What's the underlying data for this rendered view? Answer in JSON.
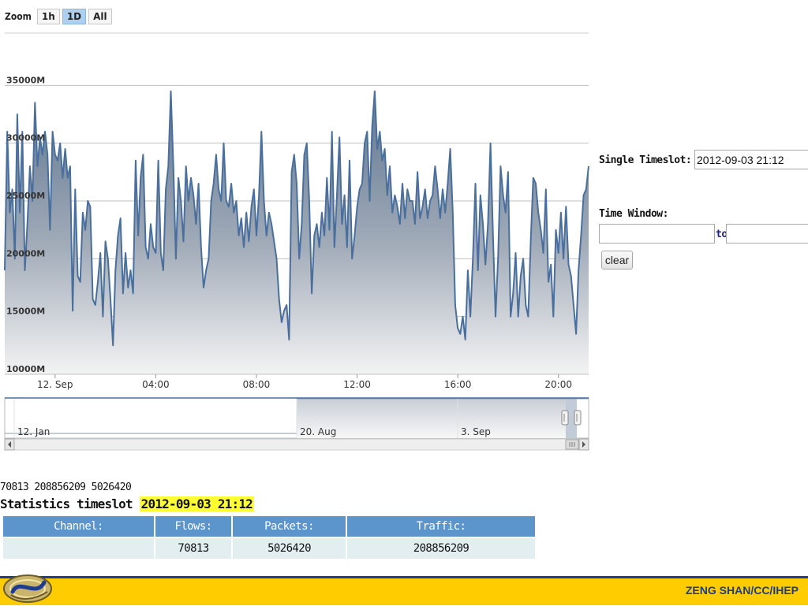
{
  "zoom": {
    "label": "Zoom",
    "buttons": [
      "1h",
      "1D",
      "All"
    ],
    "active": "1D"
  },
  "chart_data": {
    "type": "area",
    "title": "",
    "xlabel": "",
    "ylabel": "",
    "ylim": [
      10000,
      37000
    ],
    "ytick_values": [
      10000,
      15000,
      20000,
      25000,
      30000,
      35000
    ],
    "ytick_labels": [
      "10000M",
      "15000M",
      "20000M",
      "25000M",
      "30000M",
      "35000M"
    ],
    "x_start": "2012-09-11 22:00",
    "x_end": "2012-09-12 21:12",
    "xtick_labels": [
      "12. Sep",
      "04:00",
      "08:00",
      "12:00",
      "16:00",
      "20:00"
    ],
    "xtick_times": [
      "2012-09-12 00:00",
      "2012-09-12 04:00",
      "2012-09-12 08:00",
      "2012-09-12 12:00",
      "2012-09-12 16:00",
      "2012-09-12 20:00"
    ],
    "series": [
      {
        "unit": "M",
        "color": "#4a6f9c",
        "points": [
          [
            "2012-09-11 22:00",
            19000
          ],
          [
            "2012-09-11 22:06",
            31000
          ],
          [
            "2012-09-11 22:12",
            24000
          ],
          [
            "2012-09-11 22:18",
            26000
          ],
          [
            "2012-09-11 22:24",
            20000
          ],
          [
            "2012-09-11 22:30",
            32500
          ],
          [
            "2012-09-11 22:36",
            24000
          ],
          [
            "2012-09-11 22:42",
            31000
          ],
          [
            "2012-09-11 22:48",
            19000
          ],
          [
            "2012-09-11 22:54",
            23000
          ],
          [
            "2012-09-11 23:00",
            28000
          ],
          [
            "2012-09-11 23:06",
            25000
          ],
          [
            "2012-09-11 23:12",
            33500
          ],
          [
            "2012-09-11 23:18",
            28000
          ],
          [
            "2012-09-11 23:24",
            30500
          ],
          [
            "2012-09-11 23:30",
            29000
          ],
          [
            "2012-09-11 23:36",
            31000
          ],
          [
            "2012-09-11 23:42",
            29000
          ],
          [
            "2012-09-11 23:48",
            22500
          ],
          [
            "2012-09-11 23:54",
            31000
          ],
          [
            "2012-09-12 00:00",
            29000
          ],
          [
            "2012-09-12 00:06",
            28500
          ],
          [
            "2012-09-12 00:12",
            30000
          ],
          [
            "2012-09-12 00:18",
            27000
          ],
          [
            "2012-09-12 00:24",
            29500
          ],
          [
            "2012-09-12 00:30",
            27000
          ],
          [
            "2012-09-12 00:36",
            28000
          ],
          [
            "2012-09-12 00:42",
            15500
          ],
          [
            "2012-09-12 00:48",
            26000
          ],
          [
            "2012-09-12 00:54",
            18500
          ],
          [
            "2012-09-12 01:00",
            18000
          ],
          [
            "2012-09-12 01:06",
            24000
          ],
          [
            "2012-09-12 01:12",
            22500
          ],
          [
            "2012-09-12 01:18",
            25000
          ],
          [
            "2012-09-12 01:24",
            24500
          ],
          [
            "2012-09-12 01:30",
            16500
          ],
          [
            "2012-09-12 01:36",
            16000
          ],
          [
            "2012-09-12 01:42",
            18000
          ],
          [
            "2012-09-12 01:48",
            20500
          ],
          [
            "2012-09-12 01:54",
            15000
          ],
          [
            "2012-09-12 02:00",
            21500
          ],
          [
            "2012-09-12 02:06",
            20000
          ],
          [
            "2012-09-12 02:12",
            16500
          ],
          [
            "2012-09-12 02:18",
            12500
          ],
          [
            "2012-09-12 02:24",
            19000
          ],
          [
            "2012-09-12 02:30",
            22000
          ],
          [
            "2012-09-12 02:36",
            23500
          ],
          [
            "2012-09-12 02:42",
            17000
          ],
          [
            "2012-09-12 02:48",
            20500
          ],
          [
            "2012-09-12 02:54",
            17500
          ],
          [
            "2012-09-12 03:00",
            19000
          ],
          [
            "2012-09-12 03:06",
            17000
          ],
          [
            "2012-09-12 03:12",
            28500
          ],
          [
            "2012-09-12 03:18",
            22000
          ],
          [
            "2012-09-12 03:24",
            27000
          ],
          [
            "2012-09-12 03:30",
            29000
          ],
          [
            "2012-09-12 03:36",
            21000
          ],
          [
            "2012-09-12 03:42",
            20000
          ],
          [
            "2012-09-12 03:48",
            23000
          ],
          [
            "2012-09-12 03:54",
            21000
          ],
          [
            "2012-09-12 04:00",
            20500
          ],
          [
            "2012-09-12 04:06",
            28500
          ],
          [
            "2012-09-12 04:12",
            20500
          ],
          [
            "2012-09-12 04:18",
            19000
          ],
          [
            "2012-09-12 04:24",
            26000
          ],
          [
            "2012-09-12 04:30",
            28000
          ],
          [
            "2012-09-12 04:36",
            34500
          ],
          [
            "2012-09-12 04:42",
            28000
          ],
          [
            "2012-09-12 04:48",
            20000
          ],
          [
            "2012-09-12 04:54",
            27000
          ],
          [
            "2012-09-12 05:00",
            25000
          ],
          [
            "2012-09-12 05:06",
            21500
          ],
          [
            "2012-09-12 05:12",
            28000
          ],
          [
            "2012-09-12 05:18",
            25000
          ],
          [
            "2012-09-12 05:24",
            27000
          ],
          [
            "2012-09-12 05:30",
            25500
          ],
          [
            "2012-09-12 05:36",
            23000
          ],
          [
            "2012-09-12 05:42",
            26500
          ],
          [
            "2012-09-12 05:48",
            21000
          ],
          [
            "2012-09-12 05:54",
            17500
          ],
          [
            "2012-09-12 06:00",
            19000
          ],
          [
            "2012-09-12 06:06",
            20000
          ],
          [
            "2012-09-12 06:12",
            25000
          ],
          [
            "2012-09-12 06:18",
            26500
          ],
          [
            "2012-09-12 06:24",
            29000
          ],
          [
            "2012-09-12 06:30",
            26000
          ],
          [
            "2012-09-12 06:36",
            25000
          ],
          [
            "2012-09-12 06:42",
            30000
          ],
          [
            "2012-09-12 06:48",
            25000
          ],
          [
            "2012-09-12 06:54",
            24500
          ],
          [
            "2012-09-12 07:00",
            26500
          ],
          [
            "2012-09-12 07:06",
            24000
          ],
          [
            "2012-09-12 07:12",
            25000
          ],
          [
            "2012-09-12 07:18",
            22000
          ],
          [
            "2012-09-12 07:24",
            23500
          ],
          [
            "2012-09-12 07:30",
            21000
          ],
          [
            "2012-09-12 07:36",
            24000
          ],
          [
            "2012-09-12 07:42",
            21500
          ],
          [
            "2012-09-12 07:48",
            24500
          ],
          [
            "2012-09-12 07:54",
            26000
          ],
          [
            "2012-09-12 08:00",
            22000
          ],
          [
            "2012-09-12 08:06",
            25500
          ],
          [
            "2012-09-12 08:12",
            31000
          ],
          [
            "2012-09-12 08:18",
            25000
          ],
          [
            "2012-09-12 08:24",
            22000
          ],
          [
            "2012-09-12 08:30",
            24000
          ],
          [
            "2012-09-12 08:36",
            23000
          ],
          [
            "2012-09-12 08:42",
            21500
          ],
          [
            "2012-09-12 08:48",
            20000
          ],
          [
            "2012-09-12 08:54",
            16500
          ],
          [
            "2012-09-12 09:00",
            14500
          ],
          [
            "2012-09-12 09:06",
            15500
          ],
          [
            "2012-09-12 09:12",
            16000
          ],
          [
            "2012-09-12 09:18",
            13000
          ],
          [
            "2012-09-12 09:24",
            27500
          ],
          [
            "2012-09-12 09:30",
            29000
          ],
          [
            "2012-09-12 09:36",
            26500
          ],
          [
            "2012-09-12 09:42",
            20000
          ],
          [
            "2012-09-12 09:48",
            23000
          ],
          [
            "2012-09-12 09:54",
            29000
          ],
          [
            "2012-09-12 10:00",
            30000
          ],
          [
            "2012-09-12 10:06",
            25000
          ],
          [
            "2012-09-12 10:12",
            17000
          ],
          [
            "2012-09-12 10:18",
            22000
          ],
          [
            "2012-09-12 10:24",
            23000
          ],
          [
            "2012-09-12 10:30",
            21000
          ],
          [
            "2012-09-12 10:36",
            24000
          ],
          [
            "2012-09-12 10:42",
            22000
          ],
          [
            "2012-09-12 10:48",
            27000
          ],
          [
            "2012-09-12 10:54",
            22500
          ],
          [
            "2012-09-12 11:00",
            31000
          ],
          [
            "2012-09-12 11:06",
            21000
          ],
          [
            "2012-09-12 11:12",
            25500
          ],
          [
            "2012-09-12 11:18",
            30500
          ],
          [
            "2012-09-12 11:24",
            23000
          ],
          [
            "2012-09-12 11:30",
            25500
          ],
          [
            "2012-09-12 11:36",
            21000
          ],
          [
            "2012-09-12 11:42",
            28500
          ],
          [
            "2012-09-12 11:48",
            20000
          ],
          [
            "2012-09-12 11:54",
            22000
          ],
          [
            "2012-09-12 12:00",
            24500
          ],
          [
            "2012-09-12 12:06",
            26000
          ],
          [
            "2012-09-12 12:12",
            26500
          ],
          [
            "2012-09-12 12:18",
            30000
          ],
          [
            "2012-09-12 12:24",
            31000
          ],
          [
            "2012-09-12 12:30",
            25000
          ],
          [
            "2012-09-12 12:36",
            31500
          ],
          [
            "2012-09-12 12:42",
            34500
          ],
          [
            "2012-09-12 12:48",
            29500
          ],
          [
            "2012-09-12 12:54",
            31000
          ],
          [
            "2012-09-12 13:00",
            28500
          ],
          [
            "2012-09-12 13:06",
            29500
          ],
          [
            "2012-09-12 13:12",
            25500
          ],
          [
            "2012-09-12 13:18",
            28000
          ],
          [
            "2012-09-12 13:24",
            24000
          ],
          [
            "2012-09-12 13:30",
            25500
          ],
          [
            "2012-09-12 13:36",
            24500
          ],
          [
            "2012-09-12 13:42",
            23000
          ],
          [
            "2012-09-12 13:48",
            26500
          ],
          [
            "2012-09-12 13:54",
            23500
          ],
          [
            "2012-09-12 14:00",
            26000
          ],
          [
            "2012-09-12 14:06",
            25000
          ],
          [
            "2012-09-12 14:12",
            25000
          ],
          [
            "2012-09-12 14:18",
            23000
          ],
          [
            "2012-09-12 14:24",
            27500
          ],
          [
            "2012-09-12 14:30",
            23500
          ],
          [
            "2012-09-12 14:36",
            24500
          ],
          [
            "2012-09-12 14:42",
            26000
          ],
          [
            "2012-09-12 14:48",
            23500
          ],
          [
            "2012-09-12 14:54",
            25000
          ],
          [
            "2012-09-12 15:00",
            25500
          ],
          [
            "2012-09-12 15:06",
            28000
          ],
          [
            "2012-09-12 15:12",
            26000
          ],
          [
            "2012-09-12 15:18",
            23500
          ],
          [
            "2012-09-12 15:24",
            26000
          ],
          [
            "2012-09-12 15:30",
            24000
          ],
          [
            "2012-09-12 15:36",
            26500
          ],
          [
            "2012-09-12 15:42",
            29500
          ],
          [
            "2012-09-12 15:48",
            24000
          ],
          [
            "2012-09-12 15:54",
            16000
          ],
          [
            "2012-09-12 16:00",
            14000
          ],
          [
            "2012-09-12 16:06",
            13500
          ],
          [
            "2012-09-12 16:12",
            15000
          ],
          [
            "2012-09-12 16:18",
            13000
          ],
          [
            "2012-09-12 16:24",
            19000
          ],
          [
            "2012-09-12 16:30",
            15000
          ],
          [
            "2012-09-12 16:36",
            20000
          ],
          [
            "2012-09-12 16:42",
            26500
          ],
          [
            "2012-09-12 16:48",
            19000
          ],
          [
            "2012-09-12 16:54",
            25500
          ],
          [
            "2012-09-12 17:00",
            23000
          ],
          [
            "2012-09-12 17:06",
            19500
          ],
          [
            "2012-09-12 17:12",
            23000
          ],
          [
            "2012-09-12 17:18",
            30000
          ],
          [
            "2012-09-12 17:24",
            22000
          ],
          [
            "2012-09-12 17:30",
            15000
          ],
          [
            "2012-09-12 17:36",
            20000
          ],
          [
            "2012-09-12 17:42",
            28000
          ],
          [
            "2012-09-12 17:48",
            25500
          ],
          [
            "2012-09-12 17:54",
            24000
          ],
          [
            "2012-09-12 18:00",
            27500
          ],
          [
            "2012-09-12 18:06",
            15000
          ],
          [
            "2012-09-12 18:12",
            17000
          ],
          [
            "2012-09-12 18:18",
            20500
          ],
          [
            "2012-09-12 18:24",
            15000
          ],
          [
            "2012-09-12 18:30",
            18500
          ],
          [
            "2012-09-12 18:36",
            20000
          ],
          [
            "2012-09-12 18:42",
            16000
          ],
          [
            "2012-09-12 18:48",
            15000
          ],
          [
            "2012-09-12 18:54",
            21500
          ],
          [
            "2012-09-12 19:00",
            27000
          ],
          [
            "2012-09-12 19:06",
            26500
          ],
          [
            "2012-09-12 19:12",
            24000
          ],
          [
            "2012-09-12 19:18",
            22500
          ],
          [
            "2012-09-12 19:24",
            20500
          ],
          [
            "2012-09-12 19:30",
            26000
          ],
          [
            "2012-09-12 19:36",
            18000
          ],
          [
            "2012-09-12 19:42",
            19500
          ],
          [
            "2012-09-12 19:48",
            15000
          ],
          [
            "2012-09-12 19:54",
            22500
          ],
          [
            "2012-09-12 20:00",
            20500
          ],
          [
            "2012-09-12 20:06",
            24000
          ],
          [
            "2012-09-12 20:12",
            20000
          ],
          [
            "2012-09-12 20:18",
            24500
          ],
          [
            "2012-09-12 20:24",
            19500
          ],
          [
            "2012-09-12 20:30",
            18500
          ],
          [
            "2012-09-12 20:36",
            16000
          ],
          [
            "2012-09-12 20:42",
            13500
          ],
          [
            "2012-09-12 20:48",
            19000
          ],
          [
            "2012-09-12 20:54",
            22000
          ],
          [
            "2012-09-12 21:00",
            25500
          ],
          [
            "2012-09-12 21:06",
            26000
          ],
          [
            "2012-09-12 21:12",
            28000
          ]
        ]
      }
    ],
    "navigator": {
      "tick_labels": [
        "12. Jan",
        "20. Aug",
        "3. Sep"
      ]
    }
  },
  "panel": {
    "single_label": "Single Timeslot:",
    "single_value": "2012-09-03 21:12",
    "window_label": "Time Window:",
    "to_label": "to",
    "from_value": "",
    "to_value": "",
    "clear_label": "clear"
  },
  "stats": {
    "raw_line": "70813 208856209 5026420",
    "title_prefix": "Statistics timeslot",
    "timeslot": "2012-09-03 21:12",
    "headers": [
      "Channel:",
      "Flows:",
      "Packets:",
      "Traffic:"
    ],
    "row": [
      "",
      "70813",
      "5026420",
      "208856209"
    ]
  },
  "footer": {
    "text": "ZENG SHAN/CC/IHEP"
  },
  "colors": {
    "line": "#4a6f9c",
    "highlight": "#ffff33",
    "table_header": "#5b95cb",
    "table_row": "#e3eef0",
    "footer_bg": "#ffcc00",
    "footer_text": "#1d3c8e"
  }
}
